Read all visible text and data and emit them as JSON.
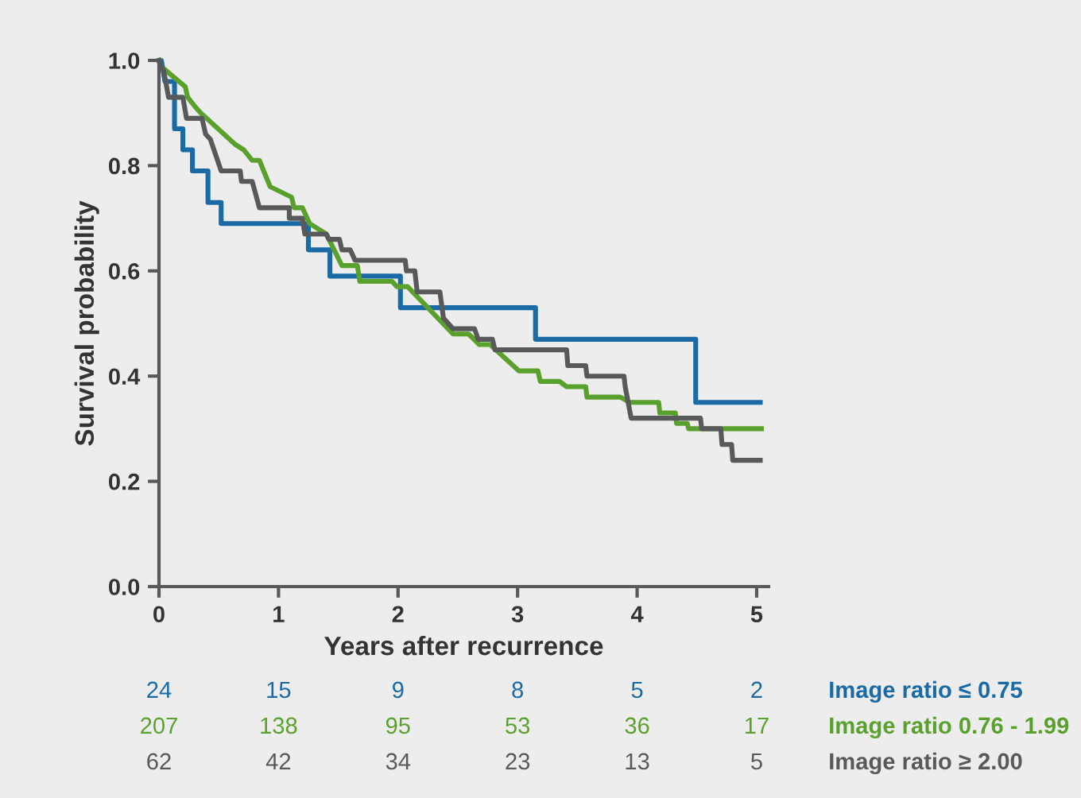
{
  "chart_data": {
    "type": "line",
    "xlabel": "Years after recurrence",
    "ylabel": "Survival probability",
    "xlim": [
      0,
      5.1
    ],
    "ylim": [
      0,
      1.0
    ],
    "xticks": [
      0,
      1,
      2,
      3,
      4,
      5
    ],
    "yticks": [
      {
        "value": 0,
        "label": "0.0"
      },
      {
        "value": 0.2,
        "label": "0.2"
      },
      {
        "value": 0.4,
        "label": "0.4"
      },
      {
        "value": 0.6,
        "label": "0.6"
      },
      {
        "value": 0.8,
        "label": "0.8"
      },
      {
        "value": 1,
        "label": "1.0"
      }
    ],
    "grid": false,
    "line_style": "solid",
    "marker": "none",
    "series": [
      {
        "name": "Image ratio ≤ 0.75",
        "color": "#1a6aa6",
        "x": [
          0,
          0.02,
          0.05,
          0.13,
          0.13,
          0.2,
          0.2,
          0.28,
          0.28,
          0.41,
          0.41,
          0.52,
          0.52,
          1.25,
          1.25,
          1.43,
          1.43,
          2.02,
          2.02,
          3.15,
          3.15,
          4.49,
          4.49,
          5.03
        ],
        "values": [
          1.0,
          1.0,
          0.96,
          0.96,
          0.87,
          0.87,
          0.83,
          0.83,
          0.79,
          0.79,
          0.73,
          0.73,
          0.69,
          0.69,
          0.64,
          0.64,
          0.59,
          0.59,
          0.53,
          0.53,
          0.47,
          0.47,
          0.35,
          0.35
        ]
      },
      {
        "name": "Image ratio 0.76 - 1.99",
        "color": "#5aa02c",
        "x": [
          0,
          0.01,
          0.22,
          0.24,
          0.31,
          0.35,
          0.64,
          0.71,
          0.78,
          0.84,
          0.93,
          1.11,
          1.13,
          1.2,
          1.26,
          1.4,
          1.53,
          1.66,
          1.68,
          1.95,
          1.99,
          2.08,
          2.46,
          2.59,
          2.68,
          2.77,
          3.01,
          3.17,
          3.19,
          3.35,
          3.41,
          3.57,
          3.58,
          3.86,
          3.94,
          4.18,
          4.19,
          4.32,
          4.33,
          4.42,
          4.43,
          5.04
        ],
        "values": [
          1.0,
          0.99,
          0.95,
          0.93,
          0.91,
          0.9,
          0.84,
          0.83,
          0.81,
          0.81,
          0.76,
          0.74,
          0.72,
          0.72,
          0.69,
          0.67,
          0.61,
          0.61,
          0.58,
          0.58,
          0.57,
          0.57,
          0.48,
          0.48,
          0.46,
          0.46,
          0.41,
          0.41,
          0.39,
          0.39,
          0.38,
          0.38,
          0.36,
          0.36,
          0.35,
          0.35,
          0.33,
          0.33,
          0.31,
          0.31,
          0.3,
          0.3
        ]
      },
      {
        "name": "Image ratio ≥ 2.00",
        "color": "#58595b",
        "x": [
          0,
          0.04,
          0.08,
          0.2,
          0.23,
          0.36,
          0.39,
          0.43,
          0.52,
          0.68,
          0.69,
          0.78,
          0.84,
          1.09,
          1.09,
          1.2,
          1.22,
          1.4,
          1.42,
          1.51,
          1.53,
          1.6,
          1.64,
          2.06,
          2.07,
          2.14,
          2.16,
          2.35,
          2.38,
          2.46,
          2.64,
          2.67,
          2.79,
          2.81,
          3.41,
          3.42,
          3.57,
          3.58,
          3.89,
          3.9,
          3.95,
          4.53,
          4.54,
          4.7,
          4.71,
          4.79,
          4.8,
          5.03
        ],
        "values": [
          1.0,
          0.98,
          0.93,
          0.93,
          0.89,
          0.89,
          0.86,
          0.85,
          0.79,
          0.79,
          0.77,
          0.77,
          0.72,
          0.72,
          0.7,
          0.7,
          0.67,
          0.67,
          0.66,
          0.66,
          0.64,
          0.64,
          0.62,
          0.62,
          0.6,
          0.6,
          0.56,
          0.56,
          0.51,
          0.49,
          0.49,
          0.47,
          0.47,
          0.45,
          0.45,
          0.42,
          0.42,
          0.4,
          0.4,
          0.38,
          0.32,
          0.32,
          0.3,
          0.3,
          0.27,
          0.27,
          0.24,
          0.24
        ]
      }
    ],
    "annotations": [
      "24",
      "15",
      "9",
      "8",
      "5",
      "2",
      "207",
      "138",
      "95",
      "53",
      "36",
      "17",
      "62",
      "42",
      "34",
      "23",
      "13",
      "5"
    ]
  }
}
